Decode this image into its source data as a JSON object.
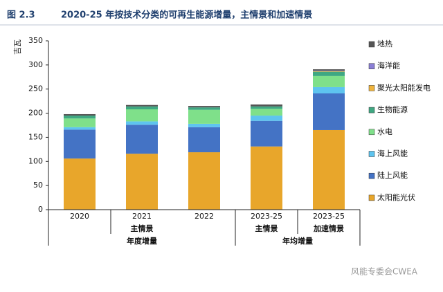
{
  "chart_data": {
    "type": "stacked-bar",
    "figure_label": "图 2.3",
    "title": "2020-25 年按技术分类的可再生能源增量，主情景和加速情景",
    "y_label": "吉瓦",
    "watermark": "风能专委会CWEA",
    "categories": [
      "2020",
      "2021",
      "2022",
      "2023-25",
      "2023-25"
    ],
    "scenario_row": [
      null,
      "主情景",
      null,
      "主情景",
      "加速情景"
    ],
    "period_row": [
      "年度增量",
      "年度增量",
      "年度增量",
      "年均增量",
      "年均增量"
    ],
    "ylim": [
      0,
      350
    ],
    "yticks": [
      0,
      50,
      100,
      150,
      200,
      250,
      300,
      350
    ],
    "grid": false,
    "legend": "right",
    "series": [
      {
        "name": "太阳能光伏",
        "color": "#e8a62b",
        "values": [
          106,
          116,
          119,
          131,
          165
        ]
      },
      {
        "name": "陆上风能",
        "color": "#4473c5",
        "values": [
          60,
          60,
          52,
          53,
          76
        ]
      },
      {
        "name": "海上风能",
        "color": "#5ec4ef",
        "values": [
          5,
          7,
          7,
          11,
          13
        ]
      },
      {
        "name": "水电",
        "color": "#7fe08a",
        "values": [
          18,
          25,
          29,
          14,
          23
        ]
      },
      {
        "name": "生物能源",
        "color": "#3fa882",
        "values": [
          6,
          6,
          5,
          5,
          9
        ]
      },
      {
        "name": "聚光太阳能发电",
        "color": "#f0b43c",
        "values": [
          0,
          0,
          0,
          0,
          1
        ]
      },
      {
        "name": "海洋能",
        "color": "#8b7fd6",
        "values": [
          0,
          0,
          0,
          0,
          1
        ]
      },
      {
        "name": "地热",
        "color": "#555555",
        "values": [
          3,
          3,
          3,
          4,
          3
        ]
      }
    ]
  }
}
